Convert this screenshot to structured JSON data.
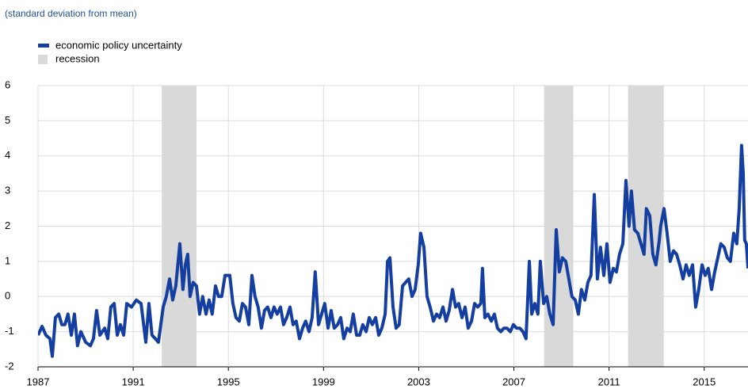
{
  "chart_data": {
    "type": "line",
    "subtitle": "(standard deviation from mean)",
    "xlim": [
      1987,
      2016.84
    ],
    "xticks": [
      1987,
      1991,
      1995,
      1999,
      2003,
      2007,
      2011,
      2015
    ],
    "ylim": [
      -2,
      6
    ],
    "yticks": [
      -2,
      -1,
      0,
      1,
      2,
      3,
      4,
      5,
      6
    ],
    "grid": true,
    "shaded": {
      "name": "recession",
      "color": "#d9d9d9",
      "spans": [
        [
          1992.2,
          1993.66
        ],
        [
          2008.27,
          2009.5
        ],
        [
          2011.8,
          2013.3
        ]
      ]
    },
    "series": [
      {
        "name": "economic policy uncertainty",
        "color": "#143fa0",
        "x": [
          1987.0,
          1987.17,
          1987.33,
          1987.5,
          1987.6,
          1987.73,
          1987.87,
          1988.0,
          1988.13,
          1988.26,
          1988.4,
          1988.53,
          1988.66,
          1988.8,
          1989.0,
          1989.2,
          1989.33,
          1989.46,
          1989.6,
          1989.8,
          1989.93,
          1990.06,
          1990.2,
          1990.33,
          1990.46,
          1990.6,
          1990.73,
          1990.93,
          1991.13,
          1991.33,
          1991.53,
          1991.66,
          1991.79,
          1991.93,
          1992.06,
          1992.26,
          1992.39,
          1992.53,
          1992.66,
          1992.79,
          1992.96,
          1993.09,
          1993.19,
          1993.29,
          1993.39,
          1993.52,
          1993.66,
          1993.79,
          1993.92,
          1994.06,
          1994.19,
          1994.32,
          1994.46,
          1994.59,
          1994.72,
          1994.86,
          1995.06,
          1995.19,
          1995.32,
          1995.46,
          1995.59,
          1995.72,
          1995.86,
          1995.99,
          1996.12,
          1996.25,
          1996.39,
          1996.52,
          1996.65,
          1996.79,
          1996.92,
          1997.05,
          1997.19,
          1997.32,
          1997.45,
          1997.59,
          1997.72,
          1997.85,
          1997.99,
          1998.12,
          1998.25,
          1998.39,
          1998.52,
          1998.65,
          1998.79,
          1998.92,
          1999.05,
          1999.19,
          1999.32,
          1999.45,
          1999.59,
          1999.72,
          1999.85,
          1999.99,
          2000.12,
          2000.25,
          2000.39,
          2000.52,
          2000.65,
          2000.79,
          2000.92,
          2001.05,
          2001.19,
          2001.32,
          2001.45,
          2001.59,
          2001.69,
          2001.79,
          2001.92,
          2002.05,
          2002.18,
          2002.32,
          2002.45,
          2002.58,
          2002.72,
          2002.85,
          2002.98,
          2003.08,
          2003.22,
          2003.35,
          2003.48,
          2003.62,
          2003.75,
          2003.88,
          2004.02,
          2004.15,
          2004.28,
          2004.42,
          2004.55,
          2004.68,
          2004.82,
          2004.95,
          2005.08,
          2005.22,
          2005.35,
          2005.48,
          2005.61,
          2005.68,
          2005.78,
          2005.91,
          2006.05,
          2006.18,
          2006.31,
          2006.45,
          2006.58,
          2006.71,
          2006.85,
          2006.98,
          2007.11,
          2007.25,
          2007.38,
          2007.51,
          2007.65,
          2007.75,
          2007.88,
          2008.01,
          2008.11,
          2008.25,
          2008.38,
          2008.51,
          2008.65,
          2008.78,
          2008.91,
          2009.04,
          2009.18,
          2009.31,
          2009.44,
          2009.58,
          2009.71,
          2009.84,
          2009.98,
          2010.11,
          2010.24,
          2010.38,
          2010.51,
          2010.64,
          2010.78,
          2010.91,
          2011.04,
          2011.18,
          2011.31,
          2011.44,
          2011.58,
          2011.71,
          2011.84,
          2011.94,
          2012.07,
          2012.21,
          2012.34,
          2012.47,
          2012.57,
          2012.71,
          2012.84,
          2012.97,
          2013.11,
          2013.17,
          2013.31,
          2013.44,
          2013.57,
          2013.71,
          2013.84,
          2013.97,
          2014.11,
          2014.24,
          2014.37,
          2014.51,
          2014.64,
          2014.77,
          2014.91,
          2015.04,
          2015.17,
          2015.31,
          2015.44,
          2015.57,
          2015.7,
          2015.84,
          2015.97,
          2016.1,
          2016.24,
          2016.37,
          2016.47,
          2016.57,
          2016.64,
          2016.7,
          2016.77,
          2016.84
        ],
        "values": [
          -1.1,
          -0.85,
          -1.1,
          -1.2,
          -1.7,
          -0.6,
          -0.5,
          -0.8,
          -0.8,
          -0.5,
          -1.1,
          -0.5,
          -1.4,
          -1.0,
          -1.3,
          -1.4,
          -1.2,
          -0.4,
          -1.1,
          -0.9,
          -1.2,
          -0.3,
          -0.2,
          -1.1,
          -0.8,
          -1.1,
          -0.2,
          -0.3,
          -0.1,
          -0.2,
          -1.3,
          -0.2,
          -1.1,
          -1.2,
          -1.3,
          -0.3,
          0.0,
          0.5,
          -0.1,
          0.3,
          1.5,
          0.2,
          0.9,
          1.2,
          0.0,
          0.4,
          0.3,
          -0.5,
          0.0,
          -0.5,
          -0.1,
          -0.5,
          0.3,
          0.0,
          0.0,
          0.6,
          0.6,
          -0.2,
          -0.6,
          -0.7,
          -0.2,
          -0.3,
          -0.8,
          0.6,
          0.0,
          -0.3,
          -0.9,
          -0.4,
          -0.3,
          -0.6,
          -0.3,
          -0.5,
          -0.3,
          -0.8,
          -0.6,
          -0.3,
          -0.8,
          -0.7,
          -1.2,
          -0.9,
          -0.7,
          -1.0,
          -0.6,
          0.7,
          -0.8,
          -0.5,
          -0.2,
          -0.9,
          -0.4,
          -0.9,
          -0.8,
          -0.6,
          -1.2,
          -0.9,
          -1.0,
          -0.5,
          -1.1,
          -1.1,
          -0.8,
          -1.0,
          -0.6,
          -0.8,
          -0.6,
          -1.1,
          -0.9,
          -0.5,
          1.0,
          1.1,
          -0.3,
          -0.9,
          -0.8,
          0.3,
          0.4,
          0.5,
          0.0,
          0.2,
          0.9,
          1.8,
          1.4,
          0.0,
          -0.3,
          -0.7,
          -0.5,
          -0.6,
          -0.3,
          -0.7,
          -0.4,
          0.2,
          -0.3,
          -0.2,
          -0.6,
          -0.3,
          -0.9,
          -0.7,
          -0.2,
          -0.3,
          -0.2,
          0.8,
          -0.6,
          -0.5,
          -0.7,
          -0.5,
          -0.9,
          -1.0,
          -0.9,
          -0.9,
          -1.0,
          -0.8,
          -0.9,
          -0.9,
          -1.0,
          -1.2,
          1.0,
          -0.5,
          -0.2,
          -0.5,
          1.0,
          -0.2,
          0.0,
          -0.5,
          -0.8,
          1.9,
          0.7,
          1.1,
          1.0,
          0.5,
          0.0,
          -0.1,
          -0.5,
          0.2,
          -0.1,
          0.4,
          0.6,
          2.9,
          0.5,
          1.4,
          0.6,
          1.5,
          0.4,
          0.8,
          0.7,
          1.2,
          1.5,
          3.3,
          2.0,
          3.0,
          1.9,
          1.8,
          1.5,
          1.2,
          2.5,
          2.3,
          1.2,
          0.9,
          1.6,
          2.0,
          2.5,
          1.8,
          1.0,
          1.3,
          1.2,
          0.9,
          0.5,
          0.9,
          0.6,
          0.9,
          -0.3,
          0.2,
          0.9,
          0.6,
          0.8,
          0.2,
          0.7,
          1.1,
          1.5,
          1.4,
          1.1,
          1.0,
          1.8,
          1.5,
          2.5,
          4.3,
          3.5,
          1.6,
          1.5,
          0.8
        ]
      }
    ]
  }
}
